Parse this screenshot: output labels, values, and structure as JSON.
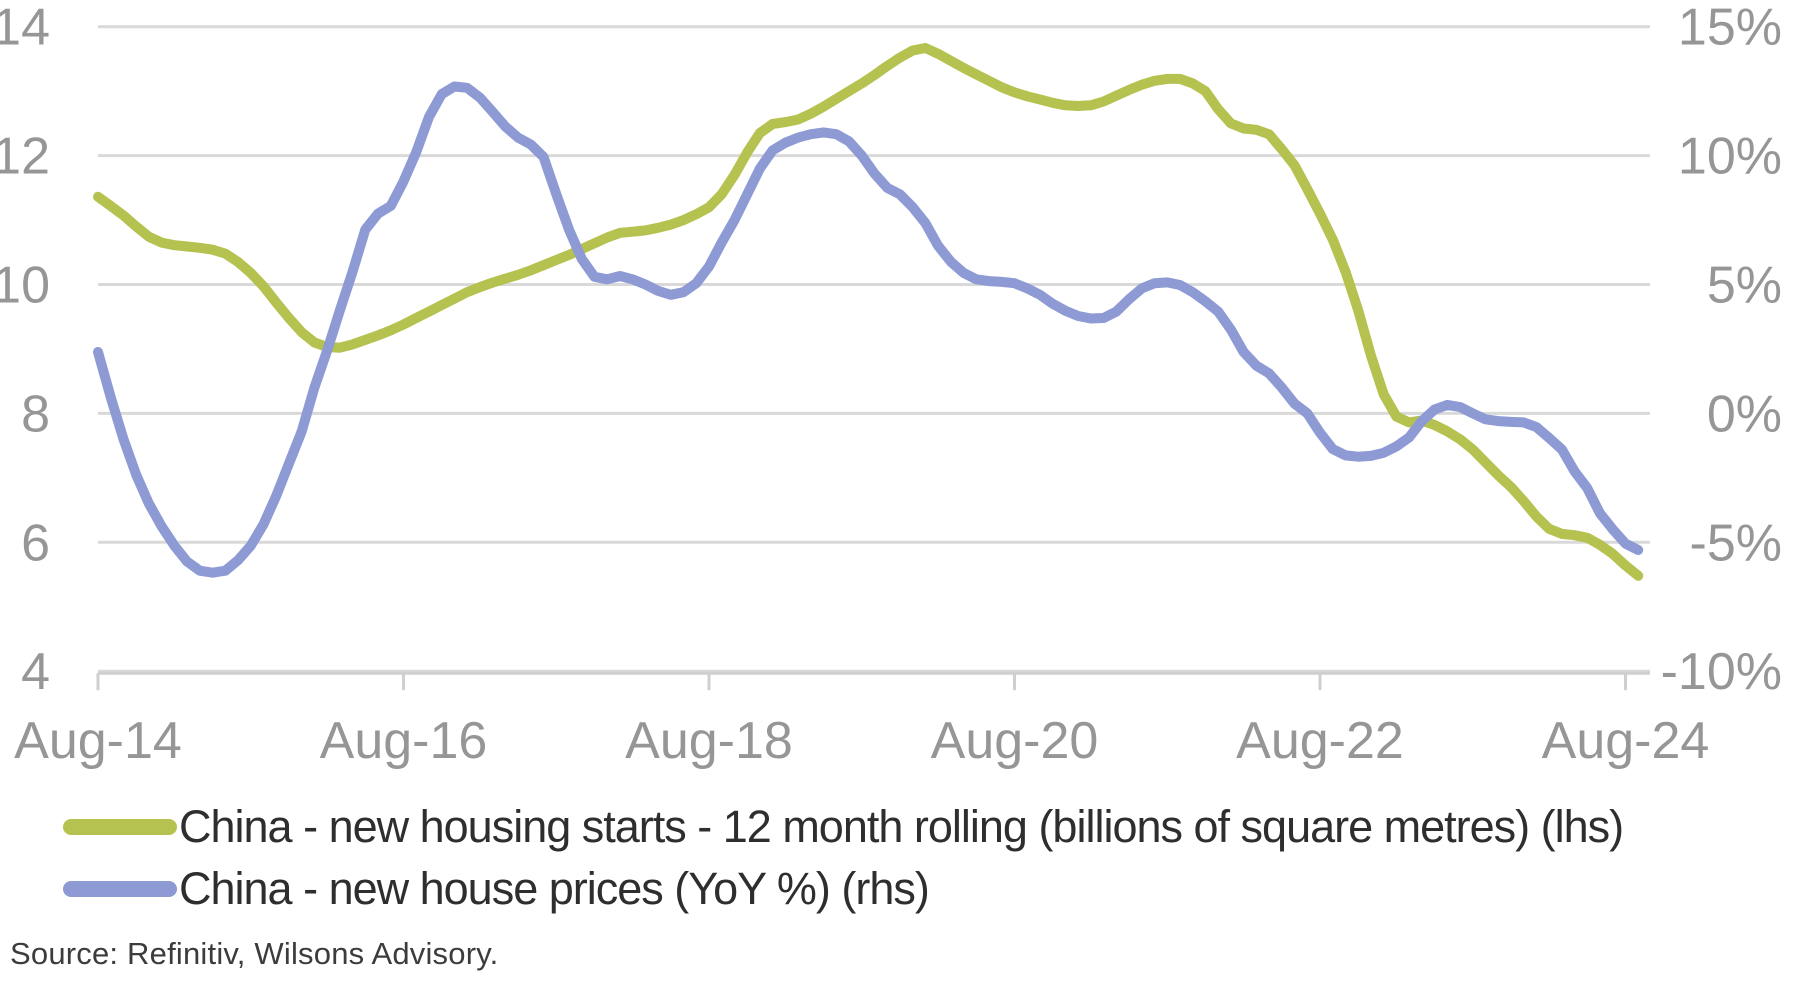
{
  "chart_data": {
    "type": "line",
    "title": "",
    "x_axis": {
      "tick_labels": [
        "Aug-14",
        "Aug-16",
        "Aug-18",
        "Aug-20",
        "Aug-22",
        "Aug-24"
      ],
      "unit": "month",
      "months_between_labeled_ticks": 24
    },
    "left_axis": {
      "label": "",
      "min": 4,
      "max": 14,
      "tick_labels": [
        "4",
        "6",
        "8",
        "10",
        "12",
        "14"
      ]
    },
    "right_axis": {
      "label": "",
      "min": -10,
      "max": 15,
      "tick_labels": [
        "-10%",
        "-5%",
        "0%",
        "5%",
        "10%",
        "15%"
      ]
    },
    "grid": true,
    "series": [
      {
        "name": "China - new housing starts - 12 month rolling (billions of square metres) (lhs)",
        "axis": "left",
        "color": "#b5c24f",
        "start_month": "Aug-2014",
        "values": [
          11.36,
          11.22,
          11.07,
          10.9,
          10.74,
          10.65,
          10.61,
          10.59,
          10.57,
          10.54,
          10.48,
          10.35,
          10.18,
          9.97,
          9.72,
          9.48,
          9.26,
          9.1,
          9.03,
          9.02,
          9.07,
          9.14,
          9.21,
          9.29,
          9.38,
          9.48,
          9.58,
          9.68,
          9.78,
          9.88,
          9.96,
          10.03,
          10.09,
          10.15,
          10.22,
          10.3,
          10.38,
          10.46,
          10.55,
          10.64,
          10.73,
          10.8,
          10.82,
          10.84,
          10.88,
          10.93,
          11.0,
          11.09,
          11.2,
          11.4,
          11.7,
          12.05,
          12.35,
          12.49,
          12.52,
          12.56,
          12.65,
          12.76,
          12.88,
          13.0,
          13.12,
          13.25,
          13.39,
          13.52,
          13.63,
          13.67,
          13.58,
          13.47,
          13.36,
          13.26,
          13.16,
          13.06,
          12.98,
          12.92,
          12.87,
          12.82,
          12.78,
          12.77,
          12.78,
          12.84,
          12.93,
          13.02,
          13.1,
          13.16,
          13.19,
          13.19,
          13.12,
          13.0,
          12.72,
          12.5,
          12.42,
          12.4,
          12.33,
          12.1,
          11.85,
          11.48,
          11.1,
          10.7,
          10.2,
          9.6,
          8.9,
          8.3,
          7.95,
          7.86,
          7.89,
          7.82,
          7.72,
          7.6,
          7.44,
          7.24,
          7.04,
          6.86,
          6.64,
          6.4,
          6.21,
          6.13,
          6.11,
          6.07,
          5.96,
          5.82,
          5.64,
          5.48
        ]
      },
      {
        "name": "China - new house prices (YoY %) (rhs)",
        "axis": "right",
        "color": "#8d9ad4",
        "start_month": "Aug-2014",
        "values": [
          2.38,
          0.63,
          -1.0,
          -2.38,
          -3.5,
          -4.38,
          -5.13,
          -5.75,
          -6.1,
          -6.18,
          -6.1,
          -5.7,
          -5.13,
          -4.3,
          -3.2,
          -1.95,
          -0.7,
          1.0,
          2.43,
          4.0,
          5.5,
          7.13,
          7.75,
          8.05,
          9.0,
          10.13,
          11.5,
          12.38,
          12.68,
          12.63,
          12.25,
          11.7,
          11.13,
          10.7,
          10.43,
          9.95,
          8.5,
          7.13,
          6.0,
          5.3,
          5.2,
          5.33,
          5.2,
          5.0,
          4.75,
          4.6,
          4.7,
          5.05,
          5.7,
          6.63,
          7.5,
          8.5,
          9.5,
          10.2,
          10.5,
          10.7,
          10.83,
          10.9,
          10.83,
          10.55,
          10.0,
          9.3,
          8.75,
          8.5,
          8.0,
          7.38,
          6.5,
          5.88,
          5.45,
          5.2,
          5.13,
          5.1,
          5.05,
          4.85,
          4.6,
          4.25,
          3.98,
          3.78,
          3.68,
          3.7,
          3.95,
          4.43,
          4.85,
          5.05,
          5.08,
          4.98,
          4.7,
          4.35,
          3.95,
          3.25,
          2.38,
          1.85,
          1.55,
          1.0,
          0.38,
          0.0,
          -0.75,
          -1.38,
          -1.63,
          -1.68,
          -1.65,
          -1.53,
          -1.28,
          -0.93,
          -0.3,
          0.15,
          0.33,
          0.25,
          0.0,
          -0.23,
          -0.3,
          -0.33,
          -0.35,
          -0.53,
          -0.95,
          -1.4,
          -2.25,
          -2.9,
          -3.88,
          -4.5,
          -5.05,
          -5.3
        ]
      }
    ]
  },
  "legend": {
    "items": [
      {
        "label": "China - new housing starts - 12 month rolling (billions of square metres) (lhs)",
        "color": "#b5c24f"
      },
      {
        "label": "China - new house prices (YoY %) (rhs)",
        "color": "#8d9ad4"
      }
    ]
  },
  "source_note": "Source: Refinitiv, Wilsons Advisory.",
  "style": {
    "grid_color": "#d9d9d9",
    "axis_color": "#cfcfcf",
    "axis_label_color": "#969696",
    "line_width": 10
  }
}
